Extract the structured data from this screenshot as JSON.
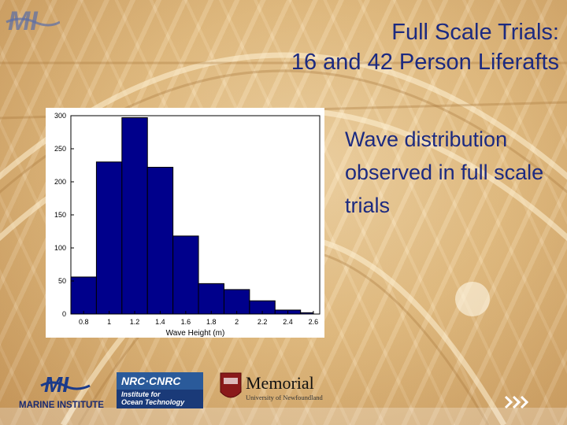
{
  "slide": {
    "title_line1": "Full Scale Trials:",
    "title_line2": "16 and 42 Person Liferafts",
    "bullet": "Wave distribution observed in full scale trials"
  },
  "logos": {
    "marine_institute": "MARINE INSTITUTE",
    "mi_mark": "MI",
    "nrc": "NRC·CNRC",
    "nrc_sub1": "Institute for",
    "nrc_sub2": "Ocean Technology",
    "memorial": "Memorial",
    "memorial_sub": "University of Newfoundland"
  },
  "colors": {
    "title": "#1c2a80",
    "bar_fill": "#00008b",
    "bar_stroke": "#000000"
  },
  "chart_data": {
    "type": "bar",
    "xlabel": "Wave Height (m)",
    "ylabel": "",
    "title": "",
    "x_ticks": [
      "0.8",
      "1",
      "1.2",
      "1.4",
      "1.6",
      "1.8",
      "2",
      "2.2",
      "2.4",
      "2.6"
    ],
    "x_tick_values": [
      0.8,
      1.0,
      1.2,
      1.4,
      1.6,
      1.8,
      2.0,
      2.2,
      2.4,
      2.6
    ],
    "y_ticks": [
      0,
      50,
      100,
      150,
      200,
      250,
      300
    ],
    "xlim": [
      0.7,
      2.65
    ],
    "ylim": [
      0,
      300
    ],
    "bins": [
      {
        "from": 0.7,
        "to": 0.9,
        "value": 56
      },
      {
        "from": 0.9,
        "to": 1.1,
        "value": 230
      },
      {
        "from": 1.1,
        "to": 1.3,
        "value": 297
      },
      {
        "from": 1.3,
        "to": 1.5,
        "value": 222
      },
      {
        "from": 1.5,
        "to": 1.7,
        "value": 118
      },
      {
        "from": 1.7,
        "to": 1.9,
        "value": 46
      },
      {
        "from": 1.9,
        "to": 2.1,
        "value": 37
      },
      {
        "from": 2.1,
        "to": 2.3,
        "value": 20
      },
      {
        "from": 2.3,
        "to": 2.5,
        "value": 6
      },
      {
        "from": 2.5,
        "to": 2.6,
        "value": 2
      }
    ],
    "grid": false,
    "legend": "none"
  }
}
